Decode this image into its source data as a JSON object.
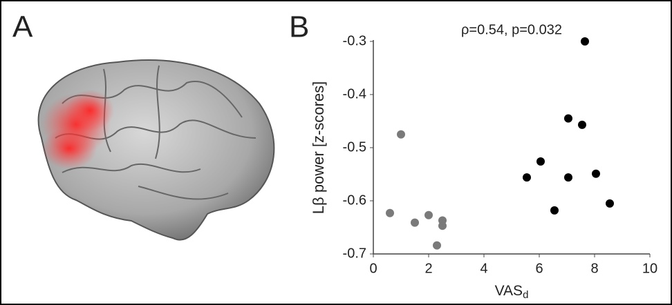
{
  "panel_a": {
    "label": "A"
  },
  "chart_data": {
    "type": "scatter",
    "panel_label": "B",
    "annotation": "ρ=0.54, p=0.032",
    "xlabel": "VAS",
    "xlabel_subscript": "d",
    "ylabel": "Lβ power [z-scores]",
    "xlim": [
      0,
      10
    ],
    "xticks": [
      0,
      2,
      4,
      6,
      8,
      10
    ],
    "ylim": [
      -0.7,
      -0.3
    ],
    "yticks": [
      -0.7,
      -0.6,
      -0.5,
      -0.4,
      -0.3
    ],
    "series": [
      {
        "color": "#7a7a7a",
        "x": [
          0.6,
          1.0,
          1.5,
          2.0,
          2.3,
          2.5,
          2.5
        ],
        "values": [
          -0.623,
          -0.475,
          -0.641,
          -0.627,
          -0.684,
          -0.637,
          -0.647
        ]
      },
      {
        "color": "#000000",
        "x": [
          5.55,
          6.05,
          6.55,
          7.05,
          7.05,
          7.55,
          7.65,
          8.05,
          8.55
        ],
        "values": [
          -0.556,
          -0.526,
          -0.618,
          -0.445,
          -0.556,
          -0.457,
          -0.3,
          -0.549,
          -0.605
        ]
      }
    ]
  }
}
